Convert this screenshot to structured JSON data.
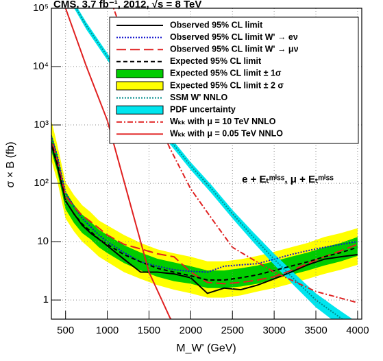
{
  "chart_data": {
    "type": "line",
    "title": "CMS,  3.7 fb⁻¹,  2012,  √s = 8 TeV",
    "annotation": "e + Eₜᵐⁱˢˢ,  μ + Eₜᵐⁱˢˢ",
    "xlabel": "M_W' (GeV)",
    "ylabel": "σ × B (fb)",
    "xlim": [
      330,
      4050
    ],
    "ylim": [
      0.47,
      100000
    ],
    "log_y": true,
    "grid": true,
    "legend": "upper right",
    "xticks": [
      500,
      1000,
      1500,
      2000,
      2500,
      3000,
      3500,
      4000
    ],
    "yticks": [
      1,
      10,
      {
        "value": 100,
        "label": "10²"
      },
      {
        "value": 1000,
        "label": "10³"
      },
      {
        "value": 10000,
        "label": "10⁴"
      },
      {
        "value": 100000,
        "label": "10⁵"
      }
    ],
    "series": [
      {
        "name": "Observed 95% CL limit",
        "kind": "line",
        "style": "solid",
        "color": "#000000",
        "x": [
          300,
          400,
          500,
          600,
          700,
          800,
          900,
          1000,
          1200,
          1400,
          1600,
          1800,
          2000,
          2200,
          2400,
          2600,
          2800,
          3000,
          3200,
          3400,
          3600,
          3800,
          4000
        ],
        "values": [
          650,
          200,
          50,
          30,
          19,
          14,
          11,
          8.5,
          5,
          3,
          3,
          2.8,
          2.4,
          1.3,
          1.6,
          1.5,
          1.8,
          2.3,
          3,
          4,
          5,
          5.5,
          6
        ]
      },
      {
        "name": "Observed 95% CL limit W' → eν",
        "kind": "line",
        "style": "dotted",
        "color": "#1010cc",
        "x": [
          300,
          400,
          500,
          600,
          700,
          800,
          900,
          1000,
          1200,
          1400,
          1600,
          1800,
          2000,
          2200,
          2400,
          2600,
          2800,
          3000,
          3200,
          3400,
          3600,
          3800,
          4000
        ],
        "values": [
          900,
          300,
          70,
          40,
          25,
          18,
          13,
          10,
          6.5,
          4.5,
          3.8,
          3.3,
          3.1,
          3,
          3.8,
          4,
          4.2,
          5,
          6,
          7,
          8,
          9,
          10
        ]
      },
      {
        "name": "Observed 95% CL limit W' → μν",
        "kind": "line",
        "style": "longdash",
        "color": "#e02020",
        "x": [
          300,
          400,
          500,
          600,
          700,
          800,
          900,
          1000,
          1200,
          1400,
          1600,
          1800,
          2000,
          2200,
          2400,
          2600,
          2800,
          3000,
          3200,
          3400,
          3600,
          3800,
          4000
        ],
        "values": [
          800,
          250,
          60,
          40,
          28,
          22,
          17,
          13,
          9,
          7.5,
          6.2,
          5.5,
          3,
          2,
          1.9,
          2,
          2.2,
          2.5,
          3.2,
          4.2,
          5.5,
          7,
          9
        ]
      },
      {
        "name": "Expected 95% CL limit",
        "kind": "line",
        "style": "dashed",
        "color": "#000000",
        "x": [
          300,
          400,
          500,
          600,
          700,
          800,
          900,
          1000,
          1200,
          1400,
          1600,
          1800,
          2000,
          2200,
          2400,
          2600,
          2800,
          3000,
          3200,
          3400,
          3600,
          3800,
          4000
        ],
        "values": [
          700,
          220,
          50,
          30,
          20,
          15,
          11,
          9,
          6,
          4.5,
          3.5,
          3,
          2.6,
          2.2,
          2.2,
          2.4,
          2.7,
          3.2,
          3.8,
          4.5,
          5.5,
          6.5,
          8
        ]
      },
      {
        "name": "Expected 95% CL limit ± 1σ",
        "kind": "band",
        "color": "#00cc00",
        "x": [
          300,
          400,
          500,
          600,
          700,
          800,
          900,
          1000,
          1200,
          1400,
          1600,
          1800,
          2000,
          2200,
          2400,
          2600,
          2800,
          3000,
          3200,
          3400,
          3600,
          3800,
          4000
        ],
        "low": [
          500,
          160,
          36,
          21,
          14,
          11,
          8,
          6.4,
          4.3,
          3.2,
          2.5,
          2.1,
          1.9,
          1.6,
          1.6,
          1.7,
          1.9,
          2.3,
          2.7,
          3.2,
          3.9,
          4.6,
          5.7
        ],
        "high": [
          1000,
          320,
          72,
          43,
          29,
          22,
          16,
          13,
          8.7,
          6.5,
          5.1,
          4.4,
          3.8,
          3.2,
          3.2,
          3.5,
          3.9,
          4.6,
          5.5,
          6.5,
          8,
          9.5,
          12
        ]
      },
      {
        "name": "Expected 95% CL limit ± 2 σ",
        "kind": "band",
        "color": "#ffff00",
        "x": [
          300,
          400,
          500,
          600,
          700,
          800,
          900,
          1000,
          1200,
          1400,
          1600,
          1800,
          2000,
          2200,
          2400,
          2600,
          2800,
          3000,
          3200,
          3400,
          3600,
          3800,
          4000
        ],
        "low": [
          350,
          110,
          25,
          15,
          10,
          7.5,
          5.5,
          4.5,
          3,
          2.3,
          1.8,
          1.5,
          1.3,
          1.1,
          1.1,
          1.2,
          1.4,
          1.6,
          1.9,
          2.3,
          2.8,
          3.3,
          4
        ],
        "high": [
          1800,
          460,
          105,
          63,
          42,
          32,
          23,
          19,
          13,
          9.5,
          7.4,
          6.3,
          5.5,
          4.6,
          4.6,
          5,
          5.7,
          6.7,
          8,
          9.5,
          12,
          14,
          17
        ]
      },
      {
        "name": "SSM W' NNLO",
        "kind": "line",
        "style": "dotted",
        "color": "#008b8b",
        "x": [
          500,
          750,
          1000,
          1250,
          1500,
          1750,
          2000,
          2250,
          2500,
          2750,
          3000,
          3250,
          3500,
          3750,
          4000
        ],
        "values": [
          200000,
          50000,
          15000,
          4500,
          1500,
          550,
          200,
          80,
          30,
          12,
          5,
          2.2,
          1,
          0.55,
          0.3
        ]
      },
      {
        "name": "PDF uncertainty",
        "kind": "band",
        "color": "#00e5ee",
        "x": [
          500,
          750,
          1000,
          1250,
          1500,
          1750,
          2000,
          2250,
          2500,
          2750,
          3000,
          3250,
          3500,
          3750,
          4000
        ],
        "low": [
          180000,
          43000,
          13000,
          3900,
          1300,
          470,
          170,
          67,
          25,
          9.8,
          4,
          1.7,
          0.75,
          0.4,
          0.21
        ],
        "high": [
          220000,
          57000,
          17000,
          5100,
          1700,
          630,
          230,
          93,
          35,
          14.5,
          6.2,
          2.8,
          1.3,
          0.72,
          0.41
        ]
      },
      {
        "name": "Wₖₖ with μ = 10 TeV NNLO",
        "kind": "line",
        "style": "dashdot",
        "color": "#e02020",
        "x": [
          1000,
          1250,
          1500,
          1750,
          2000,
          2250,
          2500,
          3000,
          3500,
          4000
        ],
        "values": [
          200000,
          20000,
          2500,
          400,
          80,
          25,
          8,
          3,
          1.4,
          0.9
        ]
      },
      {
        "name": "Wₖₖ with μ = 0.05 TeV NNLO",
        "kind": "line",
        "style": "solid",
        "color": "#e02020",
        "x": [
          300,
          500,
          750,
          1000,
          1250,
          1500,
          1750,
          1800
        ],
        "values": [
          1000000,
          100000,
          10000,
          1200,
          60,
          3,
          0.5,
          0.4
        ]
      }
    ]
  }
}
